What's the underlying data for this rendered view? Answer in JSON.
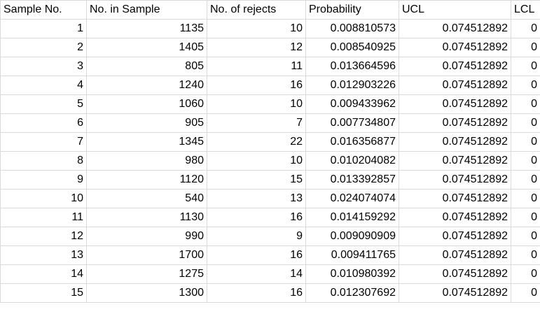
{
  "table": {
    "header": [
      "Sample No.",
      "No. in Sample",
      "No. of rejects",
      "Probability",
      "UCL",
      "LCL"
    ],
    "rows": [
      [
        1,
        1135,
        10,
        0.008810573,
        0.074512892,
        0
      ],
      [
        2,
        1405,
        12,
        0.008540925,
        0.074512892,
        0
      ],
      [
        3,
        805,
        11,
        0.013664596,
        0.074512892,
        0
      ],
      [
        4,
        1240,
        16,
        0.012903226,
        0.074512892,
        0
      ],
      [
        5,
        1060,
        10,
        0.009433962,
        0.074512892,
        0
      ],
      [
        6,
        905,
        7,
        0.007734807,
        0.074512892,
        0
      ],
      [
        7,
        1345,
        22,
        0.016356877,
        0.074512892,
        0
      ],
      [
        8,
        980,
        10,
        0.010204082,
        0.074512892,
        0
      ],
      [
        9,
        1120,
        15,
        0.013392857,
        0.074512892,
        0
      ],
      [
        10,
        540,
        13,
        0.024074074,
        0.074512892,
        0
      ],
      [
        11,
        1130,
        16,
        0.014159292,
        0.074512892,
        0
      ],
      [
        12,
        990,
        9,
        0.009090909,
        0.074512892,
        0
      ],
      [
        13,
        1700,
        16,
        0.009411765,
        0.074512892,
        0
      ],
      [
        14,
        1275,
        14,
        0.010980392,
        0.074512892,
        0
      ],
      [
        15,
        1300,
        16,
        0.012307692,
        0.074512892,
        0
      ]
    ]
  }
}
